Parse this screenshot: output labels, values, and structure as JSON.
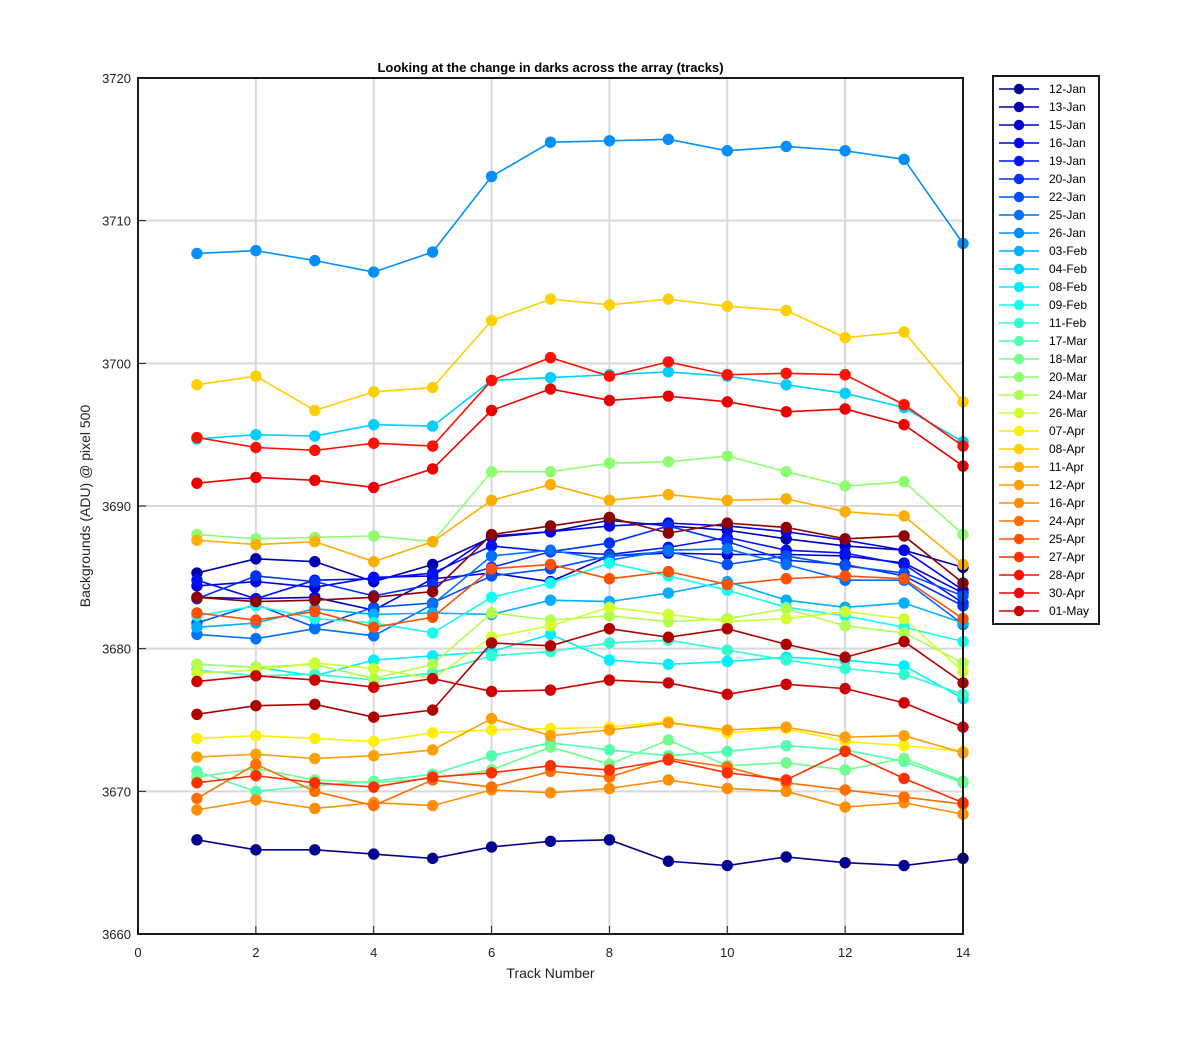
{
  "chart_data": {
    "type": "line",
    "title": "Looking at the change in darks across the array (tracks)",
    "xlabel": "Track Number",
    "ylabel": "Backgrounds (ADU) @ pixel 500",
    "xlim": [
      0,
      14
    ],
    "ylim": [
      3660,
      3720
    ],
    "xticks": [
      0,
      2,
      4,
      6,
      8,
      10,
      12,
      14
    ],
    "yticks": [
      3660,
      3670,
      3680,
      3690,
      3700,
      3710,
      3720
    ],
    "grid": true,
    "legend_position": "outside-top-right",
    "x": [
      1,
      2,
      3,
      4,
      5,
      6,
      7,
      8,
      9,
      10,
      11,
      12,
      13,
      14
    ],
    "series": [
      {
        "name": "12-Jan",
        "color": "#00008F",
        "values": [
          3666.6,
          3665.9,
          3665.9,
          3665.6,
          3665.3,
          3666.1,
          3666.5,
          3666.6,
          3665.1,
          3664.8,
          3665.4,
          3665.0,
          3664.8,
          3665.3
        ]
      },
      {
        "name": "13-Jan",
        "color": "#0000AF",
        "values": [
          3685.3,
          3686.3,
          3686.1,
          3684.7,
          3685.9,
          3687.8,
          3688.2,
          3689.0,
          3688.6,
          3688.3,
          3687.7,
          3687.2,
          3686.9,
          3685.7
        ]
      },
      {
        "name": "15-Jan",
        "color": "#0000CF",
        "values": [
          3683.6,
          3683.5,
          3683.6,
          3682.7,
          3684.9,
          3685.3,
          3684.7,
          3686.5,
          3686.7,
          3686.6,
          3686.6,
          3686.5,
          3686.0,
          3683.9
        ]
      },
      {
        "name": "16-Jan",
        "color": "#0000EF",
        "values": [
          3684.4,
          3684.7,
          3684.3,
          3685.0,
          3685.1,
          3687.9,
          3688.2,
          3688.6,
          3688.8,
          3688.6,
          3688.2,
          3687.6,
          3686.9,
          3684.1
        ]
      },
      {
        "name": "19-Jan",
        "color": "#0010FF",
        "values": [
          3684.8,
          3683.5,
          3684.8,
          3684.9,
          3685.3,
          3687.2,
          3686.8,
          3686.6,
          3687.1,
          3687.8,
          3686.9,
          3686.7,
          3685.9,
          3683.2
        ]
      },
      {
        "name": "20-Jan",
        "color": "#0030FF",
        "values": [
          3683.5,
          3685.1,
          3684.7,
          3683.7,
          3684.5,
          3685.7,
          3686.8,
          3687.4,
          3688.6,
          3687.5,
          3686.2,
          3685.9,
          3685.1,
          3683.0
        ]
      },
      {
        "name": "22-Jan",
        "color": "#0050FF",
        "values": [
          3681.8,
          3683.1,
          3681.5,
          3682.9,
          3683.2,
          3685.1,
          3685.6,
          3686.5,
          3686.8,
          3685.9,
          3686.5,
          3685.8,
          3685.3,
          3683.7
        ]
      },
      {
        "name": "25-Jan",
        "color": "#0070FF",
        "values": [
          3681.0,
          3680.7,
          3681.4,
          3680.9,
          3683.1,
          3686.5,
          3686.9,
          3686.2,
          3686.9,
          3687.0,
          3685.9,
          3684.8,
          3684.8,
          3681.7
        ]
      },
      {
        "name": "26-Jan",
        "color": "#008FFF",
        "values": [
          3707.7,
          3707.9,
          3707.2,
          3706.4,
          3707.8,
          3713.1,
          3715.5,
          3715.6,
          3715.7,
          3714.9,
          3715.2,
          3714.9,
          3714.3,
          3708.4
        ]
      },
      {
        "name": "03-Feb",
        "color": "#00AFFF",
        "values": [
          3681.5,
          3681.8,
          3682.8,
          3682.4,
          3682.5,
          3682.4,
          3683.4,
          3683.3,
          3683.9,
          3684.7,
          3683.4,
          3682.9,
          3683.2,
          3681.8
        ]
      },
      {
        "name": "04-Feb",
        "color": "#00CFFF",
        "values": [
          3694.7,
          3695.0,
          3694.9,
          3695.7,
          3695.6,
          3698.8,
          3699.0,
          3699.2,
          3699.4,
          3699.1,
          3698.5,
          3697.9,
          3696.9,
          3694.5
        ]
      },
      {
        "name": "08-Feb",
        "color": "#00EFFF",
        "values": [
          3678.9,
          3678.7,
          3678.1,
          3679.2,
          3679.5,
          3679.8,
          3681.0,
          3679.2,
          3678.9,
          3679.1,
          3679.4,
          3679.2,
          3678.8,
          3676.5
        ]
      },
      {
        "name": "09-Feb",
        "color": "#10FFEF",
        "values": [
          3682.3,
          3683.0,
          3682.1,
          3681.8,
          3681.1,
          3683.6,
          3684.6,
          3686.0,
          3685.1,
          3684.1,
          3682.9,
          3682.3,
          3681.5,
          3680.5
        ]
      },
      {
        "name": "11-Feb",
        "color": "#30FFCF",
        "values": [
          3678.5,
          3678.1,
          3678.2,
          3677.8,
          3678.3,
          3679.5,
          3679.8,
          3680.4,
          3680.6,
          3679.9,
          3679.2,
          3678.6,
          3678.2,
          3676.8
        ]
      },
      {
        "name": "17-Mar",
        "color": "#50FFAF",
        "values": [
          3671.4,
          3670.0,
          3670.4,
          3670.7,
          3671.2,
          3672.5,
          3673.4,
          3672.9,
          3672.5,
          3672.8,
          3673.2,
          3672.9,
          3672.1,
          3670.6
        ]
      },
      {
        "name": "18-Mar",
        "color": "#70FF8F",
        "values": [
          3671.0,
          3671.6,
          3670.8,
          3670.6,
          3670.9,
          3671.5,
          3673.1,
          3671.9,
          3673.6,
          3671.8,
          3672.0,
          3671.5,
          3672.3,
          3670.7
        ]
      },
      {
        "name": "20-Mar",
        "color": "#8FFF70",
        "values": [
          3688.0,
          3687.7,
          3687.8,
          3687.9,
          3687.5,
          3692.4,
          3692.4,
          3693.0,
          3693.1,
          3693.5,
          3692.4,
          3691.4,
          3691.7,
          3688.0
        ]
      },
      {
        "name": "24-Mar",
        "color": "#AFFF50",
        "values": [
          3678.9,
          3678.7,
          3678.9,
          3677.9,
          3678.9,
          3682.5,
          3682.0,
          3682.3,
          3681.9,
          3682.1,
          3682.8,
          3681.6,
          3681.1,
          3679.0
        ]
      },
      {
        "name": "26-Mar",
        "color": "#CFFF30",
        "values": [
          3678.3,
          3678.5,
          3679.0,
          3678.6,
          3677.9,
          3680.8,
          3681.6,
          3682.9,
          3682.4,
          3681.9,
          3682.1,
          3682.6,
          3682.1,
          3678.4
        ]
      },
      {
        "name": "07-Apr",
        "color": "#FFEF00",
        "values": [
          3673.7,
          3673.9,
          3673.7,
          3673.5,
          3674.1,
          3674.3,
          3674.4,
          3674.5,
          3674.9,
          3674.1,
          3674.4,
          3673.5,
          3673.2,
          3672.8
        ]
      },
      {
        "name": "08-Apr",
        "color": "#FFCF00",
        "values": [
          3698.5,
          3699.1,
          3696.7,
          3698.0,
          3698.3,
          3703.0,
          3704.5,
          3704.1,
          3704.5,
          3704.0,
          3703.7,
          3701.8,
          3702.2,
          3697.3
        ]
      },
      {
        "name": "11-Apr",
        "color": "#FFAF00",
        "values": [
          3687.6,
          3687.3,
          3687.5,
          3686.1,
          3687.5,
          3690.4,
          3691.5,
          3690.4,
          3690.8,
          3690.4,
          3690.5,
          3689.6,
          3689.3,
          3685.9
        ]
      },
      {
        "name": "12-Apr",
        "color": "#FF9F00",
        "values": [
          3672.4,
          3672.6,
          3672.3,
          3672.5,
          3672.9,
          3675.1,
          3673.9,
          3674.3,
          3674.8,
          3674.3,
          3674.5,
          3673.8,
          3673.9,
          3672.7
        ]
      },
      {
        "name": "16-Apr",
        "color": "#FF8F00",
        "values": [
          3668.7,
          3669.4,
          3668.8,
          3669.2,
          3669.0,
          3670.1,
          3669.9,
          3670.2,
          3670.8,
          3670.2,
          3670.0,
          3668.9,
          3669.2,
          3668.4
        ]
      },
      {
        "name": "24-Apr",
        "color": "#FF7000",
        "values": [
          3669.5,
          3671.9,
          3670.0,
          3669.0,
          3670.8,
          3670.3,
          3671.4,
          3671.0,
          3672.3,
          3671.7,
          3670.6,
          3670.1,
          3669.6,
          3669.1
        ]
      },
      {
        "name": "25-Apr",
        "color": "#FF5000",
        "values": [
          3682.5,
          3682.0,
          3682.6,
          3681.5,
          3682.2,
          3685.6,
          3685.9,
          3684.9,
          3685.4,
          3684.5,
          3684.9,
          3685.1,
          3684.9,
          3682.1
        ]
      },
      {
        "name": "27-Apr",
        "color": "#FF3000",
        "values": [
          3670.6,
          3671.1,
          3670.6,
          3670.3,
          3671.0,
          3671.3,
          3671.8,
          3671.5,
          3672.2,
          3671.3,
          3670.8,
          3672.8,
          3670.9,
          3669.2
        ]
      },
      {
        "name": "28-Apr",
        "color": "#FF1000",
        "values": [
          3694.8,
          3694.1,
          3693.9,
          3694.4,
          3694.2,
          3698.8,
          3700.4,
          3699.1,
          3700.1,
          3699.2,
          3699.3,
          3699.2,
          3697.1,
          3694.2
        ]
      },
      {
        "name": "30-Apr",
        "color": "#EF0000",
        "values": [
          3691.6,
          3692.0,
          3691.8,
          3691.3,
          3692.6,
          3696.7,
          3698.2,
          3697.4,
          3697.7,
          3697.3,
          3696.6,
          3696.8,
          3695.7,
          3692.8
        ]
      },
      {
        "name": "01-May",
        "color": "#CF0000",
        "values": [
          3677.7,
          3678.1,
          3677.8,
          3677.3,
          3677.9,
          3677.0,
          3677.1,
          3677.8,
          3677.6,
          3676.8,
          3677.5,
          3677.2,
          3676.2,
          3674.5
        ]
      },
      {
        "color": "#AF0000",
        "values": [
          3675.4,
          3676.0,
          3676.1,
          3675.2,
          3675.7,
          3680.4,
          3680.2,
          3681.4,
          3680.8,
          3681.4,
          3680.3,
          3679.4,
          3680.5,
          3677.6
        ]
      },
      {
        "color": "#8F0000",
        "values": [
          3683.6,
          3683.3,
          3683.4,
          3683.6,
          3684.0,
          3688.0,
          3688.6,
          3689.2,
          3688.1,
          3688.8,
          3688.5,
          3687.7,
          3687.9,
          3684.6
        ]
      }
    ]
  }
}
